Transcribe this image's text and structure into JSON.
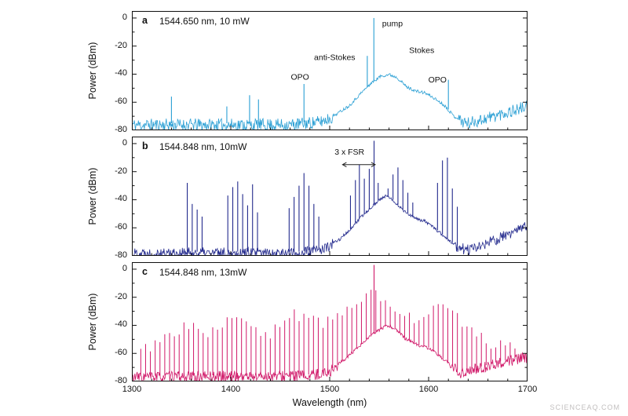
{
  "figure": {
    "xlabel": "Wavelength (nm)",
    "ylabel": "Power (dBm)",
    "x_ticks": [
      1300,
      1400,
      1500,
      1600,
      1700
    ],
    "x_minor_step": 20,
    "y_ticks": [
      0,
      -20,
      -40,
      -60,
      -80
    ],
    "y_minor_step": 10,
    "watermark": "SCIENCEAQ.COM"
  },
  "chart_data": [
    {
      "type": "line",
      "panel_label": "a",
      "title": "1544.650 nm, 10 mW",
      "color": "#2a9fd4",
      "xlabel": "Wavelength (nm)",
      "ylabel": "Power (dBm)",
      "xlim": [
        1300,
        1700
      ],
      "ylim": [
        -80,
        5
      ],
      "noise_seed": 11,
      "noise_spread": 9,
      "smooth_range": [
        1503,
        1630
      ],
      "envelope": [
        [
          1300,
          -75
        ],
        [
          1460,
          -75
        ],
        [
          1490,
          -73
        ],
        [
          1505,
          -69
        ],
        [
          1520,
          -62
        ],
        [
          1532,
          -53
        ],
        [
          1542,
          -46
        ],
        [
          1552,
          -41
        ],
        [
          1560,
          -40
        ],
        [
          1568,
          -42
        ],
        [
          1578,
          -49
        ],
        [
          1588,
          -52
        ],
        [
          1596,
          -53
        ],
        [
          1606,
          -57
        ],
        [
          1616,
          -62
        ],
        [
          1626,
          -70
        ],
        [
          1640,
          -74
        ],
        [
          1660,
          -70
        ],
        [
          1680,
          -66
        ],
        [
          1700,
          -62
        ]
      ],
      "peaks": [
        [
          1340,
          -56
        ],
        [
          1396,
          -63
        ],
        [
          1419,
          -55
        ],
        [
          1428,
          -58
        ],
        [
          1474,
          -47
        ],
        [
          1538,
          -27
        ],
        [
          1544.65,
          0
        ],
        [
          1620,
          -44
        ]
      ],
      "annotations": [
        {
          "type": "text",
          "text": "pump",
          "x": 1553,
          "y": -6,
          "anchor": "start"
        },
        {
          "type": "text",
          "text": "anti-Stokes",
          "x": 1505,
          "y": -30,
          "anchor": "middle"
        },
        {
          "type": "text",
          "text": "Stokes",
          "x": 1593,
          "y": -25,
          "anchor": "middle"
        },
        {
          "type": "text",
          "text": "OPO",
          "x": 1470,
          "y": -44,
          "anchor": "middle"
        },
        {
          "type": "text",
          "text": "OPO",
          "x": 1609,
          "y": -46,
          "anchor": "middle"
        }
      ]
    },
    {
      "type": "line",
      "panel_label": "b",
      "title": "1544.848 nm, 10mW",
      "color": "#232a8d",
      "xlabel": "Wavelength (nm)",
      "ylabel": "Power (dBm)",
      "xlim": [
        1300,
        1700
      ],
      "ylim": [
        -80,
        5
      ],
      "noise_seed": 22,
      "noise_spread": 8,
      "smooth_range": [
        1503,
        1626
      ],
      "envelope": [
        [
          1300,
          -77
        ],
        [
          1470,
          -77
        ],
        [
          1495,
          -74
        ],
        [
          1510,
          -68
        ],
        [
          1522,
          -60
        ],
        [
          1532,
          -52
        ],
        [
          1542,
          -45
        ],
        [
          1550,
          -40
        ],
        [
          1557,
          -37
        ],
        [
          1564,
          -40
        ],
        [
          1574,
          -47
        ],
        [
          1586,
          -53
        ],
        [
          1596,
          -55
        ],
        [
          1606,
          -60
        ],
        [
          1616,
          -66
        ],
        [
          1626,
          -72
        ],
        [
          1640,
          -75
        ],
        [
          1660,
          -70
        ],
        [
          1680,
          -64
        ],
        [
          1700,
          -58
        ]
      ],
      "peaks": [
        [
          1356,
          -28
        ],
        [
          1361,
          -43
        ],
        [
          1366,
          -47
        ],
        [
          1371,
          -52
        ],
        [
          1397,
          -37
        ],
        [
          1402,
          -31
        ],
        [
          1407,
          -27
        ],
        [
          1412,
          -36
        ],
        [
          1417,
          -44
        ],
        [
          1422,
          -29
        ],
        [
          1427,
          -49
        ],
        [
          1459,
          -46
        ],
        [
          1464,
          -38
        ],
        [
          1469,
          -30
        ],
        [
          1474,
          -21
        ],
        [
          1479,
          -30
        ],
        [
          1484,
          -43
        ],
        [
          1489,
          -52
        ],
        [
          1521,
          -37
        ],
        [
          1526,
          -26
        ],
        [
          1530,
          -15
        ],
        [
          1535,
          -25
        ],
        [
          1540,
          -18
        ],
        [
          1544.848,
          2
        ],
        [
          1549,
          -28
        ],
        [
          1559,
          -32
        ],
        [
          1564,
          -22
        ],
        [
          1569,
          -17
        ],
        [
          1574,
          -26
        ],
        [
          1579,
          -35
        ],
        [
          1584,
          -42
        ],
        [
          1609,
          -28
        ],
        [
          1614,
          -12
        ],
        [
          1619,
          -10
        ],
        [
          1624,
          -32
        ],
        [
          1629,
          -45
        ]
      ],
      "annotations": [
        {
          "type": "text",
          "text": "3 x FSR",
          "x": 1520,
          "y": -8,
          "anchor": "middle"
        },
        {
          "type": "double-arrow",
          "x1": 1513,
          "x2": 1546,
          "y": -15
        }
      ]
    },
    {
      "type": "line",
      "panel_label": "c",
      "title": "1544.848 nm, 13mW",
      "color": "#d01768",
      "xlabel": "Wavelength (nm)",
      "ylabel": "Power (dBm)",
      "xlim": [
        1300,
        1700
      ],
      "ylim": [
        -80,
        5
      ],
      "noise_seed": 33,
      "noise_spread": 8,
      "smooth_range": [
        1508,
        1622
      ],
      "envelope": [
        [
          1300,
          -76
        ],
        [
          1480,
          -75
        ],
        [
          1500,
          -72
        ],
        [
          1515,
          -64
        ],
        [
          1530,
          -55
        ],
        [
          1540,
          -48
        ],
        [
          1550,
          -43
        ],
        [
          1558,
          -40
        ],
        [
          1566,
          -42
        ],
        [
          1576,
          -49
        ],
        [
          1590,
          -54
        ],
        [
          1600,
          -56
        ],
        [
          1612,
          -62
        ],
        [
          1622,
          -68
        ],
        [
          1632,
          -73
        ],
        [
          1650,
          -70
        ],
        [
          1670,
          -66
        ],
        [
          1700,
          -62
        ]
      ],
      "comb": {
        "start": 1309,
        "end": 1690,
        "spacing": 4.85,
        "jitter": 9,
        "height_profile": [
          [
            1309,
            -58
          ],
          [
            1330,
            -50
          ],
          [
            1350,
            -42
          ],
          [
            1362,
            -37
          ],
          [
            1378,
            -46
          ],
          [
            1392,
            -40
          ],
          [
            1406,
            -35
          ],
          [
            1420,
            -40
          ],
          [
            1436,
            -47
          ],
          [
            1452,
            -40
          ],
          [
            1466,
            -32
          ],
          [
            1480,
            -36
          ],
          [
            1494,
            -40
          ],
          [
            1508,
            -34
          ],
          [
            1520,
            -26
          ],
          [
            1532,
            -20
          ],
          [
            1542,
            -14
          ],
          [
            1548,
            -16
          ],
          [
            1556,
            -22
          ],
          [
            1566,
            -26
          ],
          [
            1576,
            -30
          ],
          [
            1588,
            -36
          ],
          [
            1600,
            -32
          ],
          [
            1612,
            -26
          ],
          [
            1622,
            -28
          ],
          [
            1634,
            -40
          ],
          [
            1648,
            -48
          ],
          [
            1662,
            -52
          ],
          [
            1676,
            -55
          ],
          [
            1690,
            -56
          ]
        ]
      },
      "peaks": [
        [
          1544.848,
          3
        ]
      ],
      "annotations": []
    }
  ]
}
